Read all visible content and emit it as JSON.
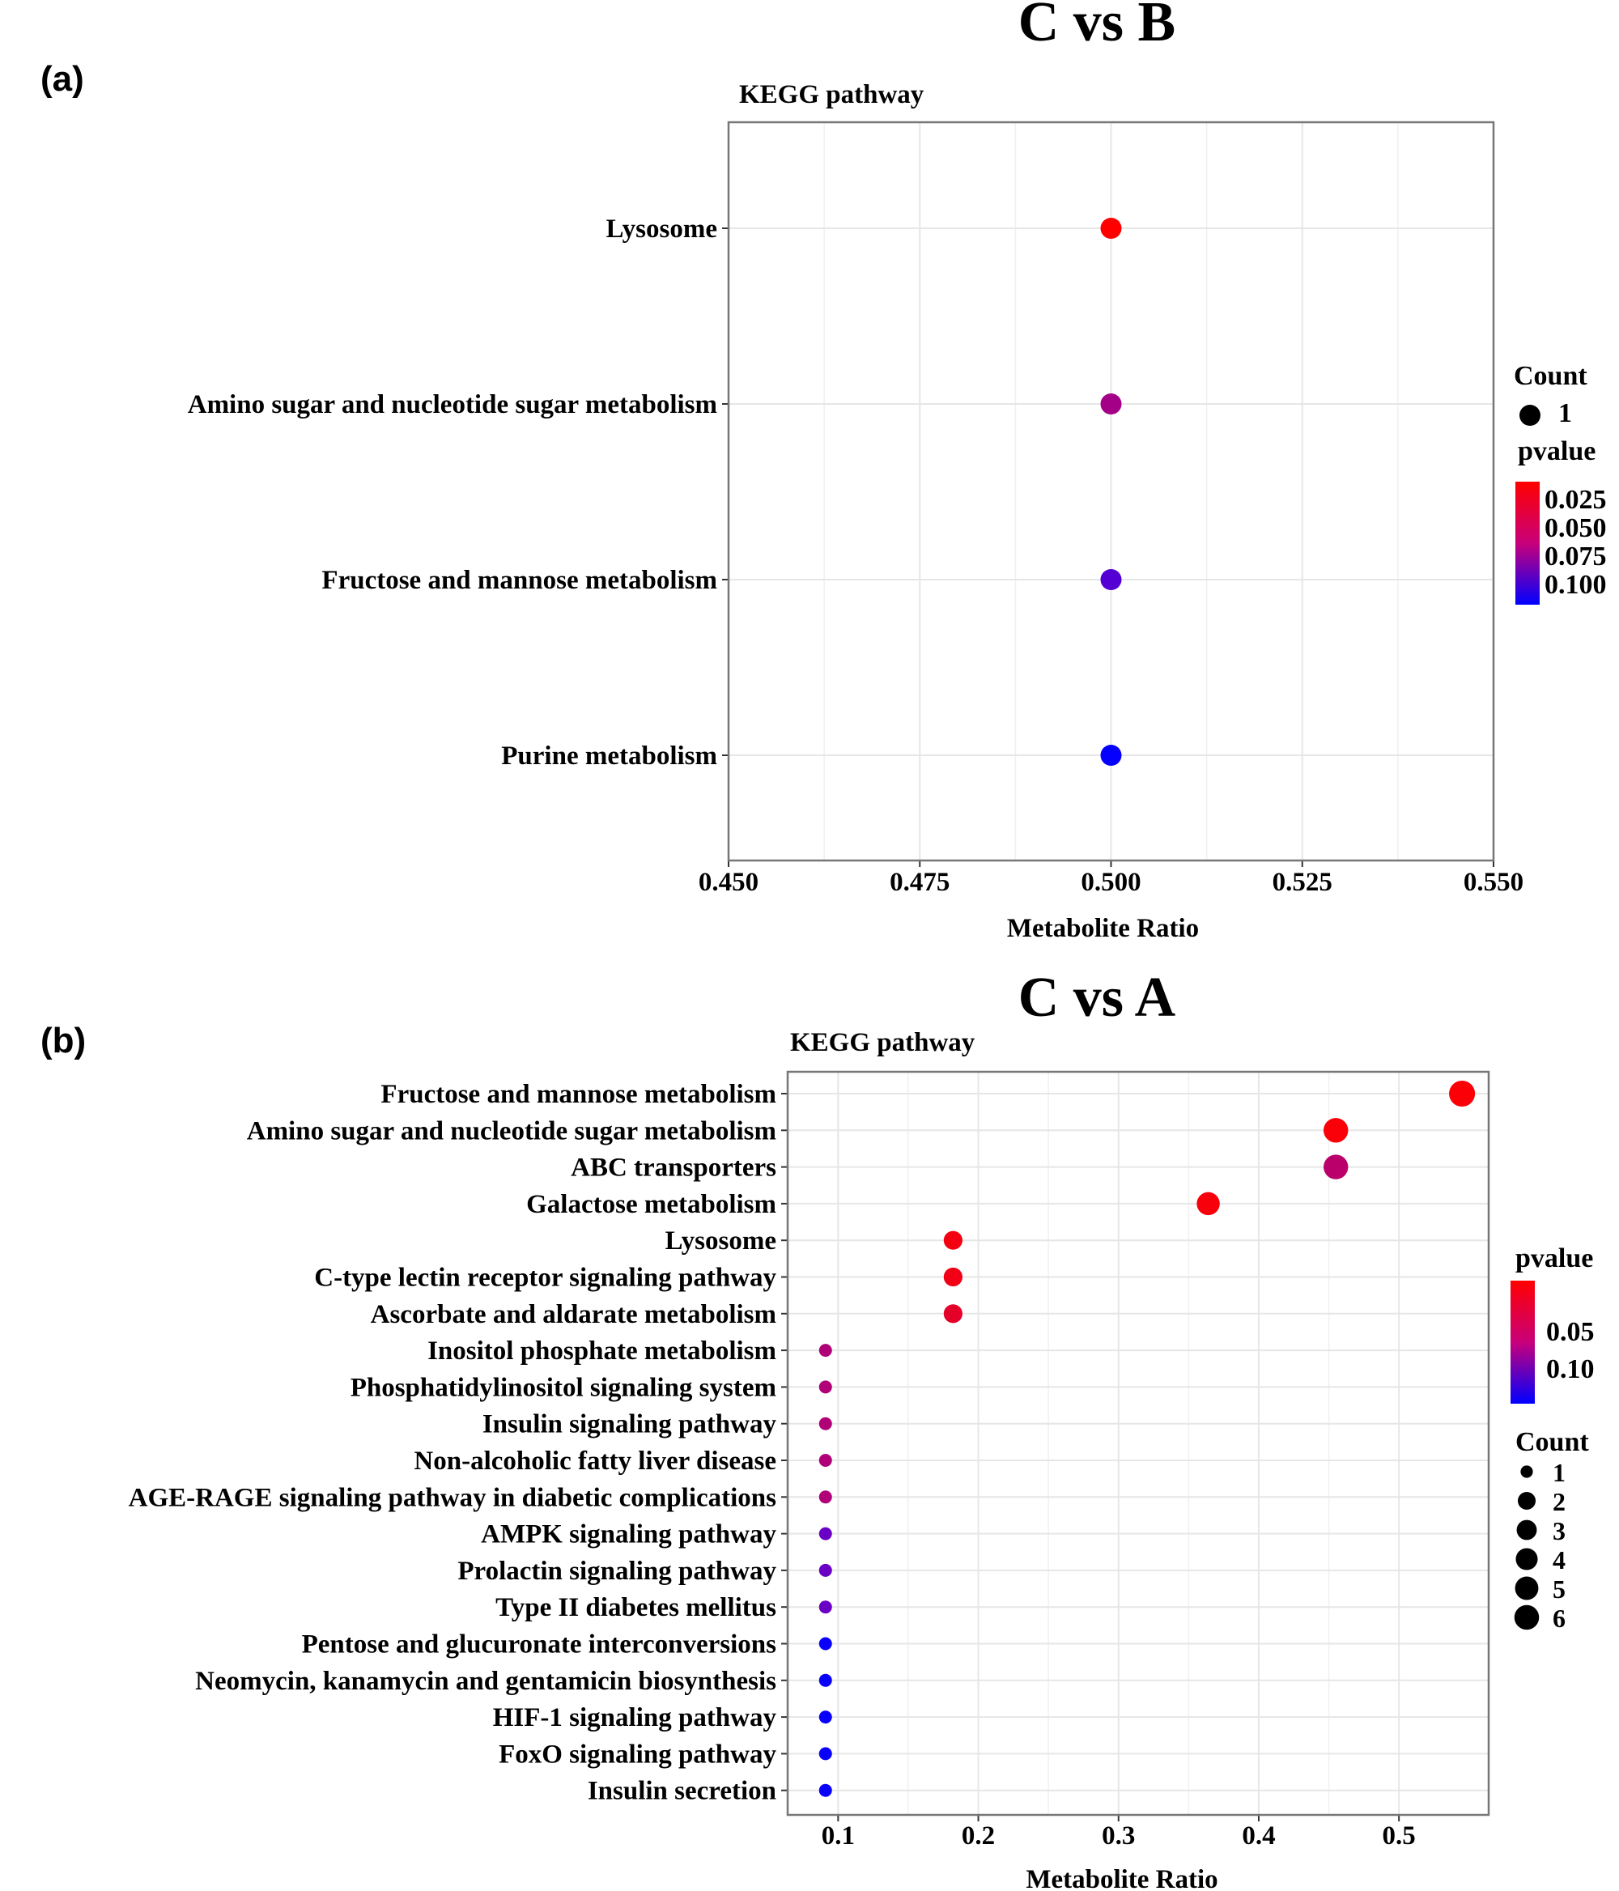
{
  "chart_data": [
    {
      "type": "scatter",
      "panel_label": "(a)",
      "title": "C vs B",
      "ylabel": "KEGG pathway",
      "xlabel": "Metabolite Ratio",
      "xlim": [
        0.45,
        0.55
      ],
      "xticks": [
        "0.450",
        "0.475",
        "0.500",
        "0.525",
        "0.550"
      ],
      "grid": true,
      "legend_placement": "right",
      "size_legend": {
        "title": "Count",
        "values": [
          "1"
        ]
      },
      "color_legend": {
        "title": "pvalue",
        "ticks": [
          "0.025",
          "0.050",
          "0.075",
          "0.100"
        ],
        "low_color": "#ff0000",
        "high_color": "#0000ff",
        "range": [
          0.015,
          0.112
        ]
      },
      "points": [
        {
          "pathway": "Lysosome",
          "ratio": 0.5,
          "count": 1,
          "pvalue": 0.015
        },
        {
          "pathway": "Amino sugar and nucleotide sugar metabolism",
          "ratio": 0.5,
          "count": 1,
          "pvalue": 0.05
        },
        {
          "pathway": "Fructose and mannose metabolism",
          "ratio": 0.5,
          "count": 1,
          "pvalue": 0.08
        },
        {
          "pathway": "Purine metabolism",
          "ratio": 0.5,
          "count": 1,
          "pvalue": 0.11
        }
      ]
    },
    {
      "type": "scatter",
      "panel_label": "(b)",
      "title": "C vs A",
      "ylabel": "KEGG pathway",
      "xlabel": "Metabolite Ratio",
      "xlim": [
        0.064,
        0.564
      ],
      "xticks": [
        "0.1",
        "0.2",
        "0.3",
        "0.4",
        "0.5"
      ],
      "grid": true,
      "legend_placement": "right",
      "color_legend": {
        "title": "pvalue",
        "ticks": [
          "0.05",
          "0.10"
        ],
        "low_color": "#ff0000",
        "high_color": "#0000ff",
        "range": [
          0.0,
          0.145
        ]
      },
      "size_legend": {
        "title": "Count",
        "values": [
          "1",
          "2",
          "3",
          "4",
          "5",
          "6"
        ]
      },
      "points": [
        {
          "pathway": "Fructose and mannose metabolism",
          "ratio": 0.545,
          "count": 6,
          "pvalue": 0.002
        },
        {
          "pathway": "Amino sugar and nucleotide sugar metabolism",
          "ratio": 0.455,
          "count": 5,
          "pvalue": 0.003
        },
        {
          "pathway": "ABC transporters",
          "ratio": 0.455,
          "count": 5,
          "pvalue": 0.04
        },
        {
          "pathway": "Galactose metabolism",
          "ratio": 0.364,
          "count": 4,
          "pvalue": 0.004
        },
        {
          "pathway": "Lysosome",
          "ratio": 0.182,
          "count": 2,
          "pvalue": 0.006
        },
        {
          "pathway": "C-type lectin receptor signaling pathway",
          "ratio": 0.182,
          "count": 2,
          "pvalue": 0.008
        },
        {
          "pathway": "Ascorbate and aldarate metabolism",
          "ratio": 0.182,
          "count": 2,
          "pvalue": 0.015
        },
        {
          "pathway": "Inositol phosphate metabolism",
          "ratio": 0.091,
          "count": 1,
          "pvalue": 0.045
        },
        {
          "pathway": "Phosphatidylinositol signaling system",
          "ratio": 0.091,
          "count": 1,
          "pvalue": 0.045
        },
        {
          "pathway": "Insulin signaling pathway",
          "ratio": 0.091,
          "count": 1,
          "pvalue": 0.045
        },
        {
          "pathway": "Non-alcoholic fatty liver disease",
          "ratio": 0.091,
          "count": 1,
          "pvalue": 0.045
        },
        {
          "pathway": "AGE-RAGE signaling pathway in diabetic complications",
          "ratio": 0.091,
          "count": 1,
          "pvalue": 0.045
        },
        {
          "pathway": "AMPK signaling pathway",
          "ratio": 0.091,
          "count": 1,
          "pvalue": 0.085
        },
        {
          "pathway": "Prolactin signaling pathway",
          "ratio": 0.091,
          "count": 1,
          "pvalue": 0.085
        },
        {
          "pathway": "Type II diabetes mellitus",
          "ratio": 0.091,
          "count": 1,
          "pvalue": 0.085
        },
        {
          "pathway": "Pentose and glucuronate interconversions",
          "ratio": 0.091,
          "count": 1,
          "pvalue": 0.14
        },
        {
          "pathway": "Neomycin, kanamycin and gentamicin biosynthesis",
          "ratio": 0.091,
          "count": 1,
          "pvalue": 0.14
        },
        {
          "pathway": "HIF-1 signaling pathway",
          "ratio": 0.091,
          "count": 1,
          "pvalue": 0.14
        },
        {
          "pathway": "FoxO signaling pathway",
          "ratio": 0.091,
          "count": 1,
          "pvalue": 0.14
        },
        {
          "pathway": "Insulin secretion",
          "ratio": 0.091,
          "count": 1,
          "pvalue": 0.14
        }
      ]
    }
  ]
}
